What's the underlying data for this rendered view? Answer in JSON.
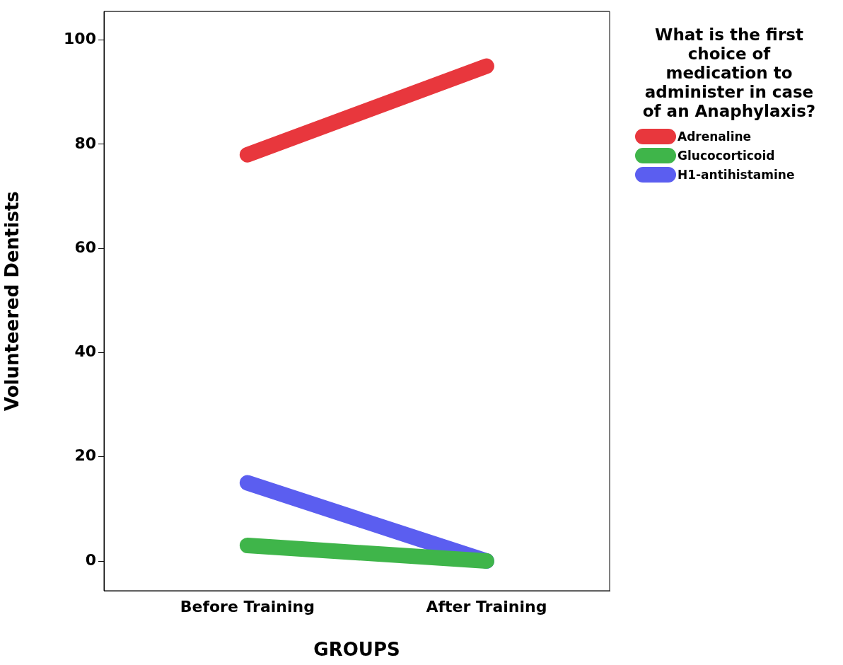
{
  "chart_data": {
    "type": "line",
    "xlabel": "GROUPS",
    "ylabel": "Volunteered Dentists",
    "legend_title": "What is the first choice of medication to administer in case of an Anaphylaxis?",
    "legend": "right",
    "categories": [
      "Before Training",
      "After Training"
    ],
    "ylim": [
      -5.7,
      105.5
    ],
    "yticks": [
      0,
      20,
      40,
      60,
      80,
      100
    ],
    "series": [
      {
        "name": "Adrenaline",
        "color": "#e8373d",
        "values": [
          78,
          95
        ]
      },
      {
        "name": "Glucocorticoid",
        "color": "#3fb54a",
        "values": [
          3,
          0
        ]
      },
      {
        "name": "H1-antihistamine",
        "color": "#5b5ef0",
        "values": [
          15,
          0
        ]
      }
    ]
  }
}
